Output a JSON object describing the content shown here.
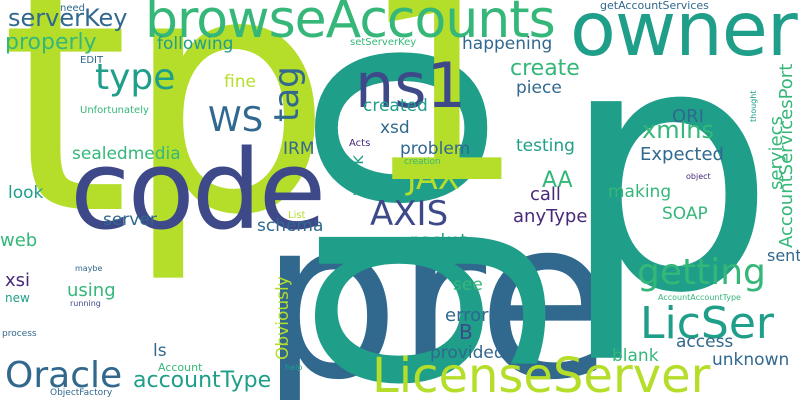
{
  "palette": {
    "background": "#ffffff",
    "lime": "#b5de2b",
    "green": "#35b779",
    "teal": "#1f9e89",
    "blue": "#31688e",
    "indigo": "#3e4989",
    "purple": "#482878"
  },
  "words": [
    {
      "text": "tp",
      "color": "#b5de2b",
      "rotated": false
    },
    {
      "text": "pre",
      "color": "#31688e",
      "rotated": false
    },
    {
      "text": "go",
      "color": "#1f9e89",
      "rotated": true
    },
    {
      "text": "1",
      "color": "#b5de2b",
      "rotated": false
    },
    {
      "text": "code",
      "color": "#3e4989",
      "rotated": false
    },
    {
      "text": "p",
      "color": "#1f9e89",
      "rotated": false
    },
    {
      "text": "owner",
      "color": "#1f9e89",
      "rotated": false
    },
    {
      "text": "browseAccounts",
      "color": "#35b779",
      "rotated": false
    },
    {
      "text": "ns1",
      "color": "#3e4989",
      "rotated": false
    },
    {
      "text": "LicenseServer",
      "color": "#b5de2b",
      "rotated": false
    },
    {
      "text": "LicSer",
      "color": "#1f9e89",
      "rotated": false
    },
    {
      "text": "Oracle",
      "color": "#31688e",
      "rotated": false
    },
    {
      "text": "AXIS",
      "color": "#3e4989",
      "rotated": false
    },
    {
      "text": "JAX",
      "color": "#b5de2b",
      "rotated": false
    },
    {
      "text": "type",
      "color": "#1f9e89",
      "rotated": false
    },
    {
      "text": "WS",
      "color": "#31688e",
      "rotated": false
    },
    {
      "text": "getting",
      "color": "#35b779",
      "rotated": false
    },
    {
      "text": "tag",
      "color": "#31688e",
      "rotated": true
    },
    {
      "text": "serverKey",
      "color": "#31688e",
      "rotated": false
    },
    {
      "text": "properly",
      "color": "#35b779",
      "rotated": false
    },
    {
      "text": "accountType",
      "color": "#1f9e89",
      "rotated": false
    },
    {
      "text": "xmlns",
      "color": "#35b779",
      "rotated": false
    },
    {
      "text": "create",
      "color": "#35b779",
      "rotated": false
    },
    {
      "text": "Expected",
      "color": "#31688e",
      "rotated": false
    },
    {
      "text": "ORI",
      "color": "#31688e",
      "rotated": false
    },
    {
      "text": "AA",
      "color": "#35b779",
      "rotated": false
    },
    {
      "text": "AccountServicesPort",
      "color": "#35b779",
      "rotated": true
    },
    {
      "text": "seryiecs",
      "color": "#35b779",
      "rotated": true
    },
    {
      "text": "following",
      "color": "#1f9e89",
      "rotated": false
    },
    {
      "text": "happening",
      "color": "#31688e",
      "rotated": false
    },
    {
      "text": "piece",
      "color": "#31688e",
      "rotated": false
    },
    {
      "text": "testing",
      "color": "#1f9e89",
      "rotated": false
    },
    {
      "text": "created",
      "color": "#1f9e89",
      "rotated": false
    },
    {
      "text": "xsd",
      "color": "#31688e",
      "rotated": false
    },
    {
      "text": "problem",
      "color": "#31688e",
      "rotated": false
    },
    {
      "text": "IRM",
      "color": "#31688e",
      "rotated": false
    },
    {
      "text": "fine",
      "color": "#b5de2b",
      "rotated": false
    },
    {
      "text": "sealedmedia",
      "color": "#35b779",
      "rotated": false
    },
    {
      "text": "look",
      "color": "#1f9e89",
      "rotated": false
    },
    {
      "text": "server",
      "color": "#31688e",
      "rotated": false
    },
    {
      "text": "schema",
      "color": "#31688e",
      "rotated": false
    },
    {
      "text": "packet",
      "color": "#1f9e89",
      "rotated": false
    },
    {
      "text": "work",
      "color": "#1f9e89",
      "rotated": true
    },
    {
      "text": "making",
      "color": "#35b779",
      "rotated": false
    },
    {
      "text": "SOAP",
      "color": "#35b779",
      "rotated": false
    },
    {
      "text": "call",
      "color": "#482878",
      "rotated": false
    },
    {
      "text": "anyType",
      "color": "#482878",
      "rotated": false
    },
    {
      "text": "web",
      "color": "#35b779",
      "rotated": false
    },
    {
      "text": "xsi",
      "color": "#482878",
      "rotated": false
    },
    {
      "text": "new",
      "color": "#1f9e89",
      "rotated": false
    },
    {
      "text": "using",
      "color": "#35b779",
      "rotated": false
    },
    {
      "text": "see",
      "color": "#35b779",
      "rotated": false
    },
    {
      "text": "error",
      "color": "#31688e",
      "rotated": false
    },
    {
      "text": "B",
      "color": "#3e4989",
      "rotated": false
    },
    {
      "text": "provided",
      "color": "#31688e",
      "rotated": false
    },
    {
      "text": "ls",
      "color": "#31688e",
      "rotated": false
    },
    {
      "text": "sent",
      "color": "#31688e",
      "rotated": false
    },
    {
      "text": "access",
      "color": "#31688e",
      "rotated": false
    },
    {
      "text": "blank",
      "color": "#35b779",
      "rotated": false
    },
    {
      "text": "unknown",
      "color": "#31688e",
      "rotated": false
    },
    {
      "text": "Obviously",
      "color": "#b5de2b",
      "rotated": true
    },
    {
      "text": "Account",
      "color": "#35b779",
      "rotated": false
    },
    {
      "text": "need",
      "color": "#31688e",
      "rotated": false
    },
    {
      "text": "getAccountServices",
      "color": "#31688e",
      "rotated": false
    },
    {
      "text": "setServerKey",
      "color": "#35b779",
      "rotated": false
    },
    {
      "text": "EDIT",
      "color": "#31688e",
      "rotated": false
    },
    {
      "text": "Unfortunately",
      "color": "#35b779",
      "rotated": false
    },
    {
      "text": "creation",
      "color": "#35b779",
      "rotated": false
    },
    {
      "text": "Acts",
      "color": "#482878",
      "rotated": false
    },
    {
      "text": "List",
      "color": "#b5de2b",
      "rotated": false
    },
    {
      "text": "maybe",
      "color": "#31688e",
      "rotated": false
    },
    {
      "text": "running",
      "color": "#3e4989",
      "rotated": false
    },
    {
      "text": "process",
      "color": "#31688e",
      "rotated": false
    },
    {
      "text": "ObjectFactory",
      "color": "#31688e",
      "rotated": false
    },
    {
      "text": "help",
      "color": "#1f9e89",
      "rotated": false
    },
    {
      "text": "object",
      "color": "#482878",
      "rotated": false
    },
    {
      "text": "AccountAccountType",
      "color": "#35b779",
      "rotated": false
    },
    {
      "text": "thought",
      "color": "#1f9e89",
      "rotated": true
    }
  ]
}
